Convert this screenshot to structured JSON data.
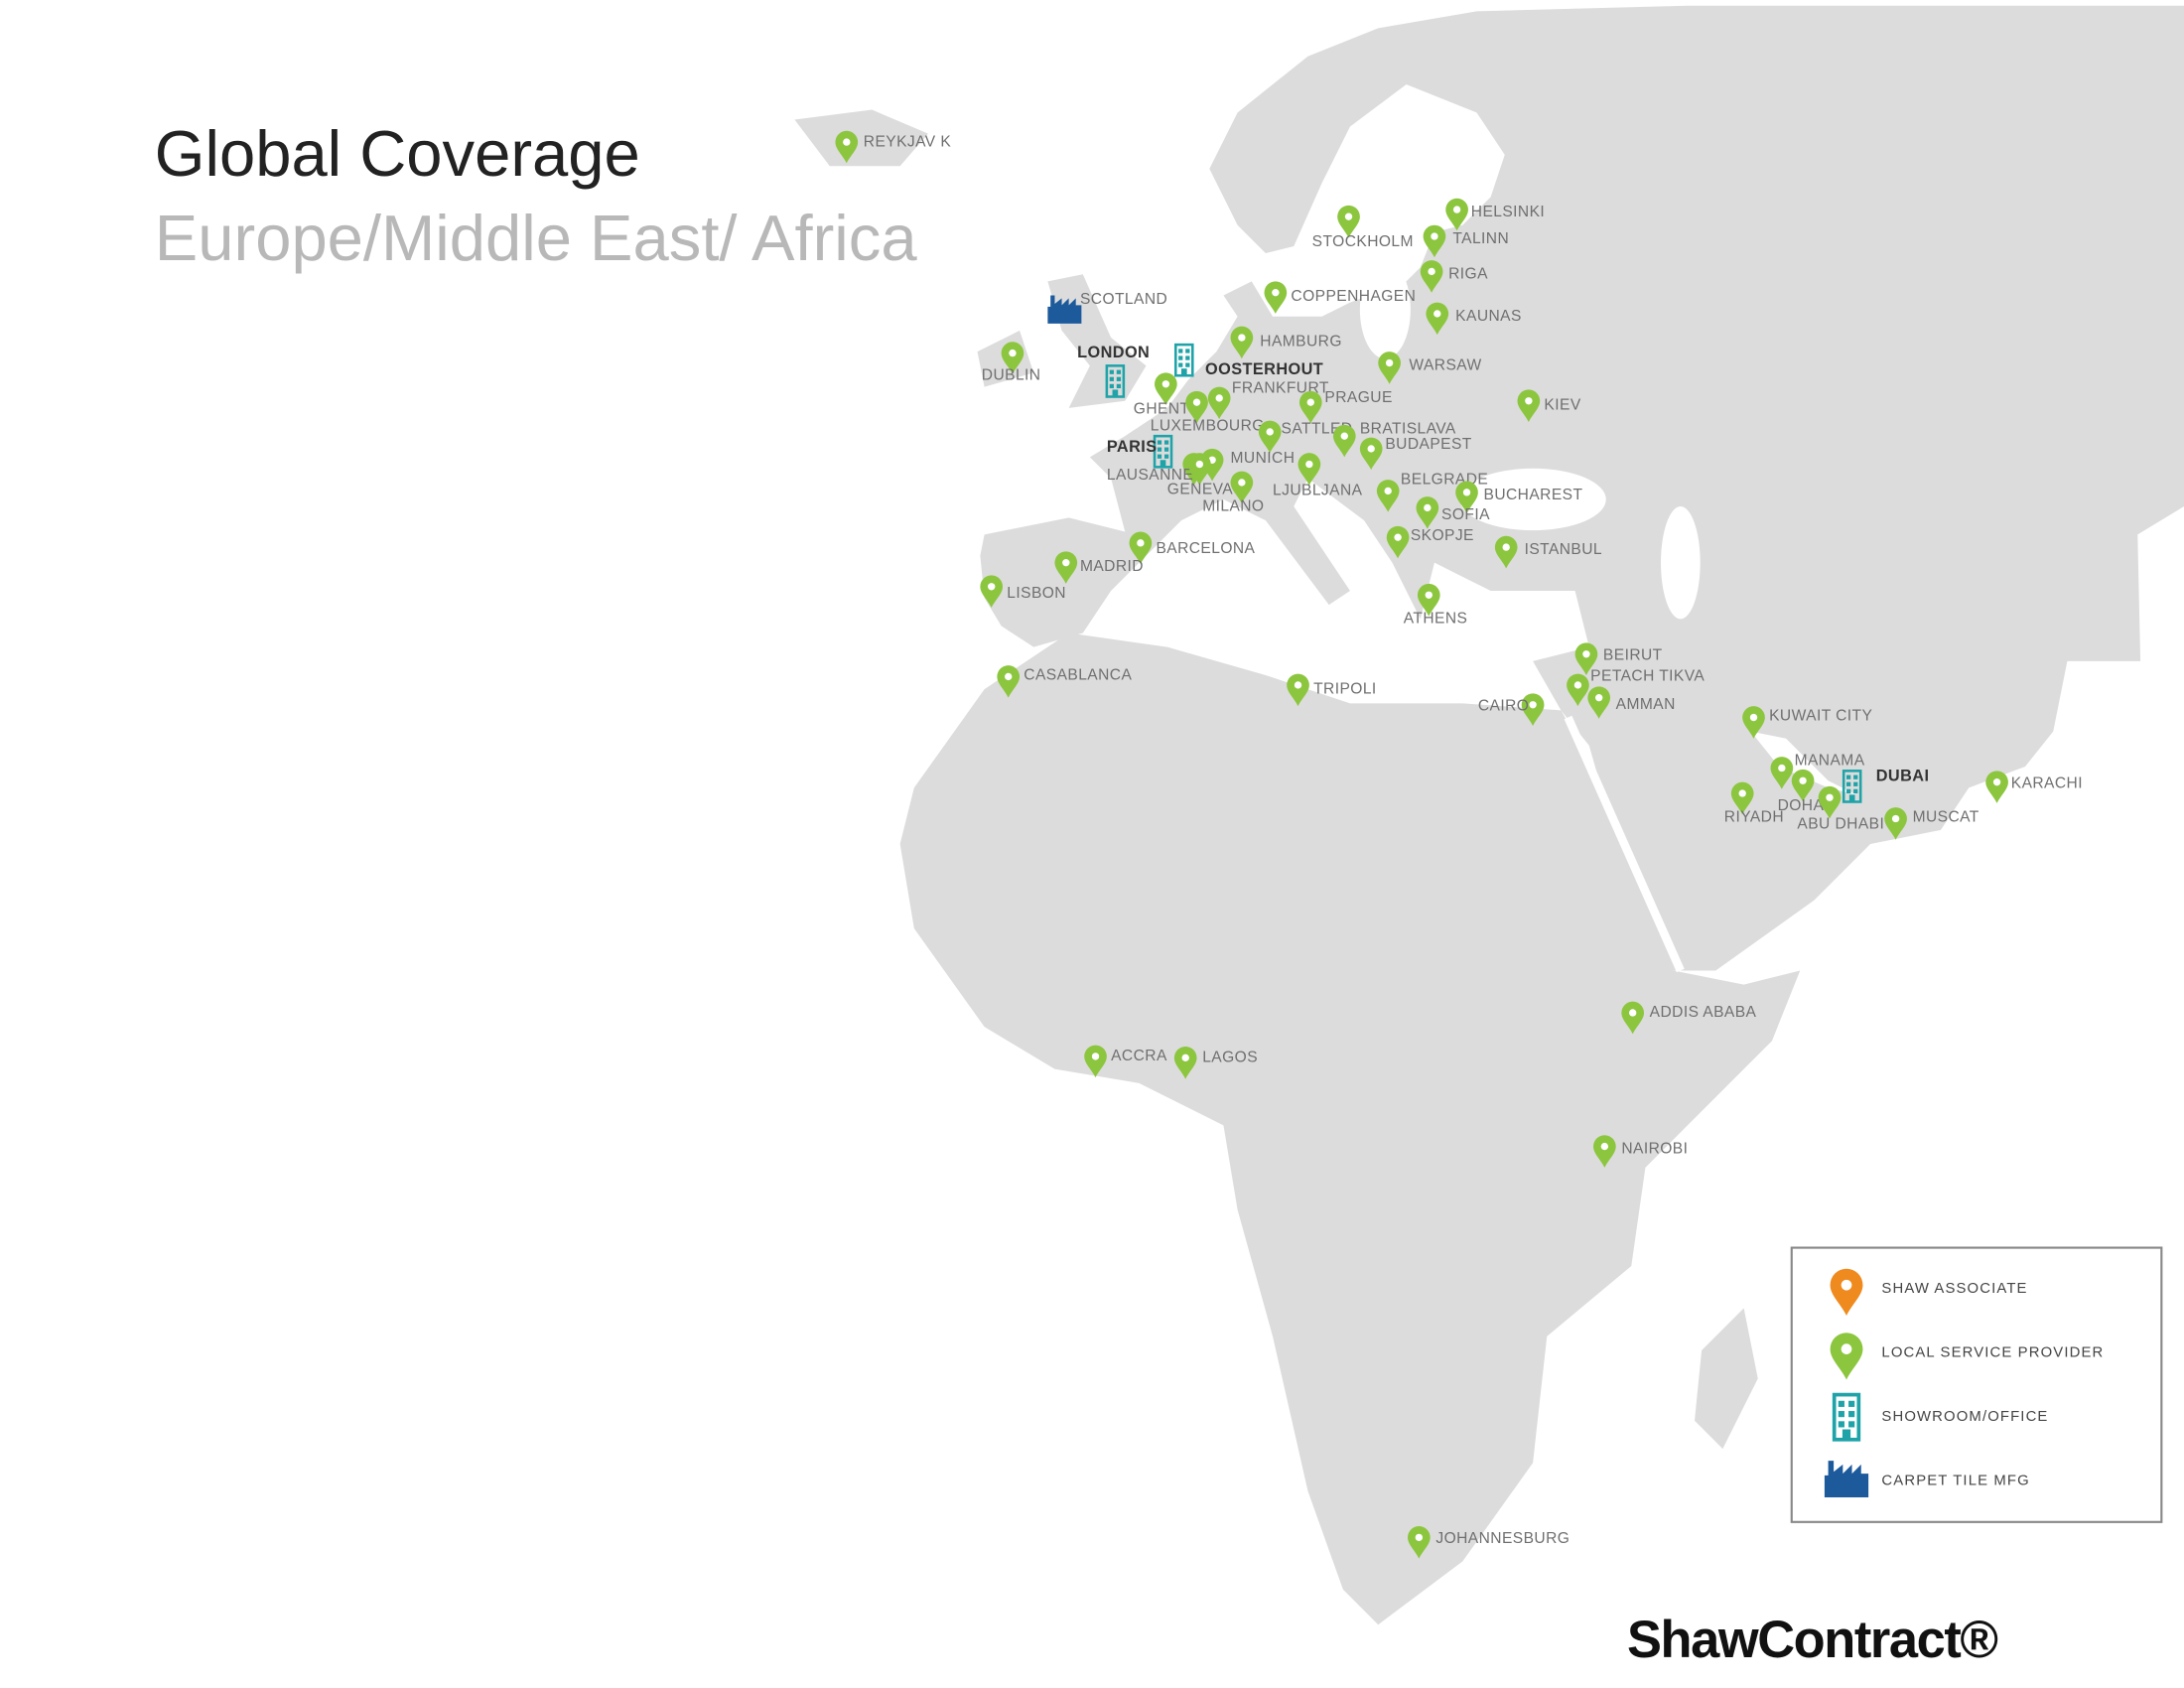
{
  "title": "Global Coverage",
  "subtitle": "Europe/Middle East/ Africa",
  "logo": "ShawContract®",
  "legend": [
    {
      "label": "SHAW ASSOCIATE",
      "kind": "associate"
    },
    {
      "label": "LOCAL SERVICE PROVIDER",
      "kind": "local"
    },
    {
      "label": "SHOWROOM/OFFICE",
      "kind": "showroom"
    },
    {
      "label": "CARPET TILE MFG",
      "kind": "mfg"
    }
  ],
  "locations": [
    {
      "label": "REYKJAV K",
      "kind": "local"
    },
    {
      "label": "HELSINKI",
      "kind": "local"
    },
    {
      "label": "STOCKHOLM",
      "kind": "local"
    },
    {
      "label": "TALINN",
      "kind": "local"
    },
    {
      "label": "RIGA",
      "kind": "local"
    },
    {
      "label": "COPPENHAGEN",
      "kind": "local"
    },
    {
      "label": "KAUNAS",
      "kind": "local"
    },
    {
      "label": "SCOTLAND",
      "kind": "mfg"
    },
    {
      "label": "HAMBURG",
      "kind": "local"
    },
    {
      "label": "DUBLIN",
      "kind": "local"
    },
    {
      "label": "LONDON",
      "kind": "showroom"
    },
    {
      "label": "OOSTERHOUT",
      "kind": "showroom"
    },
    {
      "label": "WARSAW",
      "kind": "local"
    },
    {
      "label": "FRANKFURT",
      "kind": "local"
    },
    {
      "label": "GHENT",
      "kind": "local"
    },
    {
      "label": "PRAGUE",
      "kind": "local"
    },
    {
      "label": "KIEV",
      "kind": "local"
    },
    {
      "label": "LUXEMBOURG",
      "kind": "local"
    },
    {
      "label": "SATTLED",
      "kind": "local"
    },
    {
      "label": "BRATISLAVA",
      "kind": "local"
    },
    {
      "label": "BUDAPEST",
      "kind": "local"
    },
    {
      "label": "PARIS",
      "kind": "showroom"
    },
    {
      "label": "MUNICH",
      "kind": "local"
    },
    {
      "label": "LAUSANNE",
      "kind": "local"
    },
    {
      "label": "GENEVA",
      "kind": "local"
    },
    {
      "label": "LJUBLJANA",
      "kind": "local"
    },
    {
      "label": "MILANO",
      "kind": "local"
    },
    {
      "label": "BELGRADE",
      "kind": "local"
    },
    {
      "label": "BUCHAREST",
      "kind": "local"
    },
    {
      "label": "SOFIA",
      "kind": "local"
    },
    {
      "label": "SKOPJE",
      "kind": "local"
    },
    {
      "label": "ISTANBUL",
      "kind": "local"
    },
    {
      "label": "BARCELONA",
      "kind": "local"
    },
    {
      "label": "MADRID",
      "kind": "local"
    },
    {
      "label": "LISBON",
      "kind": "local"
    },
    {
      "label": "ATHENS",
      "kind": "local"
    },
    {
      "label": "BEIRUT",
      "kind": "local"
    },
    {
      "label": "PETACH TIKVA",
      "kind": "local"
    },
    {
      "label": "AMMAN",
      "kind": "local"
    },
    {
      "label": "CAIRO",
      "kind": "local"
    },
    {
      "label": "TRIPOLI",
      "kind": "local"
    },
    {
      "label": "CASABLANCA",
      "kind": "local"
    },
    {
      "label": "KUWAIT CITY",
      "kind": "local"
    },
    {
      "label": "MANAMA",
      "kind": "local"
    },
    {
      "label": "DUBAI",
      "kind": "showroom"
    },
    {
      "label": "DOHA",
      "kind": "local"
    },
    {
      "label": "RIYADH",
      "kind": "local"
    },
    {
      "label": "ABU DHABI",
      "kind": "local"
    },
    {
      "label": "MUSCAT",
      "kind": "local"
    },
    {
      "label": "KARACHI",
      "kind": "local"
    },
    {
      "label": "ADDIS ABABA",
      "kind": "local"
    },
    {
      "label": "ACCRA",
      "kind": "local"
    },
    {
      "label": "LAGOS",
      "kind": "local"
    },
    {
      "label": "NAIROBI",
      "kind": "local"
    },
    {
      "label": "JOHANNESBURG",
      "kind": "local"
    }
  ]
}
